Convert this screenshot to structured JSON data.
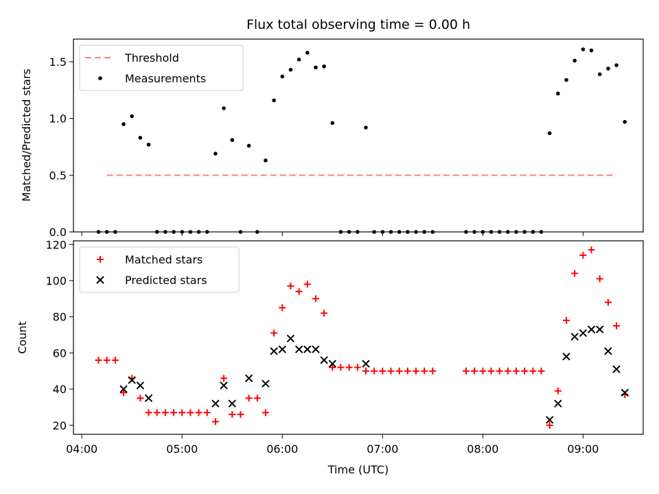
{
  "title": "Flux total observing time = 0.00 h",
  "chart_data": [
    {
      "type": "scatter",
      "ylabel": "Matched/Predicted stars",
      "ylim": [
        0,
        1.7
      ],
      "xlim": [
        "03:55",
        "09:36"
      ],
      "legend": {
        "placement": "top-left",
        "entries": [
          {
            "label": "Threshold",
            "style": "dashed-line",
            "color": "#ff7f7f"
          },
          {
            "label": "Measurements",
            "style": "dot",
            "color": "#000000"
          }
        ]
      },
      "threshold": {
        "value": 0.5,
        "x_start": "04:15",
        "x_end": "09:20",
        "color": "#ff7f7f"
      },
      "series": [
        {
          "name": "Measurements",
          "color": "#000000",
          "points": [
            [
              "04:10",
              0
            ],
            [
              "04:15",
              0
            ],
            [
              "04:20",
              0
            ],
            [
              "04:25",
              0.95
            ],
            [
              "04:30",
              1.02
            ],
            [
              "04:35",
              0.83
            ],
            [
              "04:40",
              0.77
            ],
            [
              "04:45",
              0
            ],
            [
              "04:50",
              0
            ],
            [
              "04:55",
              0
            ],
            [
              "05:00",
              0
            ],
            [
              "05:05",
              0
            ],
            [
              "05:10",
              0
            ],
            [
              "05:15",
              0
            ],
            [
              "05:20",
              0.69
            ],
            [
              "05:25",
              1.09
            ],
            [
              "05:30",
              0.81
            ],
            [
              "05:35",
              0
            ],
            [
              "05:40",
              0.76
            ],
            [
              "05:45",
              0
            ],
            [
              "05:50",
              0.63
            ],
            [
              "05:55",
              1.16
            ],
            [
              "06:00",
              1.37
            ],
            [
              "06:05",
              1.43
            ],
            [
              "06:10",
              1.52
            ],
            [
              "06:15",
              1.58
            ],
            [
              "06:20",
              1.45
            ],
            [
              "06:25",
              1.46
            ],
            [
              "06:30",
              0.96
            ],
            [
              "06:35",
              0
            ],
            [
              "06:40",
              0
            ],
            [
              "06:45",
              0
            ],
            [
              "06:50",
              0.92
            ],
            [
              "06:55",
              0
            ],
            [
              "07:00",
              0
            ],
            [
              "07:05",
              0
            ],
            [
              "07:10",
              0
            ],
            [
              "07:15",
              0
            ],
            [
              "07:20",
              0
            ],
            [
              "07:25",
              0
            ],
            [
              "07:30",
              0
            ],
            [
              "07:50",
              0
            ],
            [
              "07:55",
              0
            ],
            [
              "08:00",
              0
            ],
            [
              "08:05",
              0
            ],
            [
              "08:10",
              0
            ],
            [
              "08:15",
              0
            ],
            [
              "08:20",
              0
            ],
            [
              "08:25",
              0
            ],
            [
              "08:30",
              0
            ],
            [
              "08:35",
              0
            ],
            [
              "08:40",
              0.87
            ],
            [
              "08:45",
              1.22
            ],
            [
              "08:50",
              1.34
            ],
            [
              "08:55",
              1.51
            ],
            [
              "09:00",
              1.61
            ],
            [
              "09:05",
              1.6
            ],
            [
              "09:10",
              1.39
            ],
            [
              "09:15",
              1.44
            ],
            [
              "09:20",
              1.47
            ],
            [
              "09:25",
              0.97
            ]
          ]
        }
      ],
      "yticks": [
        "0.0",
        "0.5",
        "1.0",
        "1.5"
      ],
      "ytick_values": [
        0,
        0.5,
        1.0,
        1.5
      ]
    },
    {
      "type": "scatter",
      "xlabel": "Time (UTC)",
      "ylabel": "Count",
      "ylim": [
        15,
        122
      ],
      "xlim": [
        "03:55",
        "09:36"
      ],
      "legend": {
        "placement": "top-left",
        "entries": [
          {
            "label": "Matched stars",
            "style": "plus",
            "color": "#ff0000"
          },
          {
            "label": "Predicted stars",
            "style": "x",
            "color": "#000000"
          }
        ]
      },
      "series": [
        {
          "name": "Matched stars",
          "color": "#ff0000",
          "marker": "plus",
          "points": [
            [
              "04:10",
              56
            ],
            [
              "04:15",
              56
            ],
            [
              "04:20",
              56
            ],
            [
              "04:25",
              38
            ],
            [
              "04:30",
              46
            ],
            [
              "04:35",
              35
            ],
            [
              "04:40",
              27
            ],
            [
              "04:45",
              27
            ],
            [
              "04:50",
              27
            ],
            [
              "04:55",
              27
            ],
            [
              "05:00",
              27
            ],
            [
              "05:05",
              27
            ],
            [
              "05:10",
              27
            ],
            [
              "05:15",
              27
            ],
            [
              "05:20",
              22
            ],
            [
              "05:25",
              46
            ],
            [
              "05:30",
              26
            ],
            [
              "05:35",
              26
            ],
            [
              "05:40",
              35
            ],
            [
              "05:45",
              35
            ],
            [
              "05:50",
              27
            ],
            [
              "05:55",
              71
            ],
            [
              "06:00",
              85
            ],
            [
              "06:05",
              97
            ],
            [
              "06:10",
              94
            ],
            [
              "06:15",
              98
            ],
            [
              "06:20",
              90
            ],
            [
              "06:25",
              82
            ],
            [
              "06:30",
              52
            ],
            [
              "06:35",
              52
            ],
            [
              "06:40",
              52
            ],
            [
              "06:45",
              52
            ],
            [
              "06:50",
              50
            ],
            [
              "06:55",
              50
            ],
            [
              "07:00",
              50
            ],
            [
              "07:05",
              50
            ],
            [
              "07:10",
              50
            ],
            [
              "07:15",
              50
            ],
            [
              "07:20",
              50
            ],
            [
              "07:25",
              50
            ],
            [
              "07:30",
              50
            ],
            [
              "07:50",
              50
            ],
            [
              "07:55",
              50
            ],
            [
              "08:00",
              50
            ],
            [
              "08:05",
              50
            ],
            [
              "08:10",
              50
            ],
            [
              "08:15",
              50
            ],
            [
              "08:20",
              50
            ],
            [
              "08:25",
              50
            ],
            [
              "08:30",
              50
            ],
            [
              "08:35",
              50
            ],
            [
              "08:40",
              20
            ],
            [
              "08:45",
              39
            ],
            [
              "08:50",
              78
            ],
            [
              "08:55",
              104
            ],
            [
              "09:00",
              114
            ],
            [
              "09:05",
              117
            ],
            [
              "09:10",
              101
            ],
            [
              "09:15",
              88
            ],
            [
              "09:20",
              75
            ],
            [
              "09:25",
              37
            ]
          ]
        },
        {
          "name": "Predicted stars",
          "color": "#000000",
          "marker": "x",
          "points": [
            [
              "04:25",
              40
            ],
            [
              "04:30",
              45
            ],
            [
              "04:35",
              42
            ],
            [
              "04:40",
              35
            ],
            [
              "05:20",
              32
            ],
            [
              "05:25",
              42
            ],
            [
              "05:30",
              32
            ],
            [
              "05:40",
              46
            ],
            [
              "05:50",
              43
            ],
            [
              "05:55",
              61
            ],
            [
              "06:00",
              62
            ],
            [
              "06:05",
              68
            ],
            [
              "06:10",
              62
            ],
            [
              "06:15",
              62
            ],
            [
              "06:20",
              62
            ],
            [
              "06:25",
              56
            ],
            [
              "06:30",
              54
            ],
            [
              "06:50",
              54
            ],
            [
              "08:40",
              23
            ],
            [
              "08:45",
              32
            ],
            [
              "08:50",
              58
            ],
            [
              "08:55",
              69
            ],
            [
              "09:00",
              71
            ],
            [
              "09:05",
              73
            ],
            [
              "09:10",
              73
            ],
            [
              "09:15",
              61
            ],
            [
              "09:20",
              51
            ],
            [
              "09:25",
              38
            ]
          ]
        }
      ],
      "yticks": [
        "20",
        "40",
        "60",
        "80",
        "100",
        "120"
      ],
      "ytick_values": [
        20,
        40,
        60,
        80,
        100,
        120
      ]
    }
  ],
  "xticks": [
    "04:00",
    "05:00",
    "06:00",
    "07:00",
    "08:00",
    "09:00"
  ]
}
